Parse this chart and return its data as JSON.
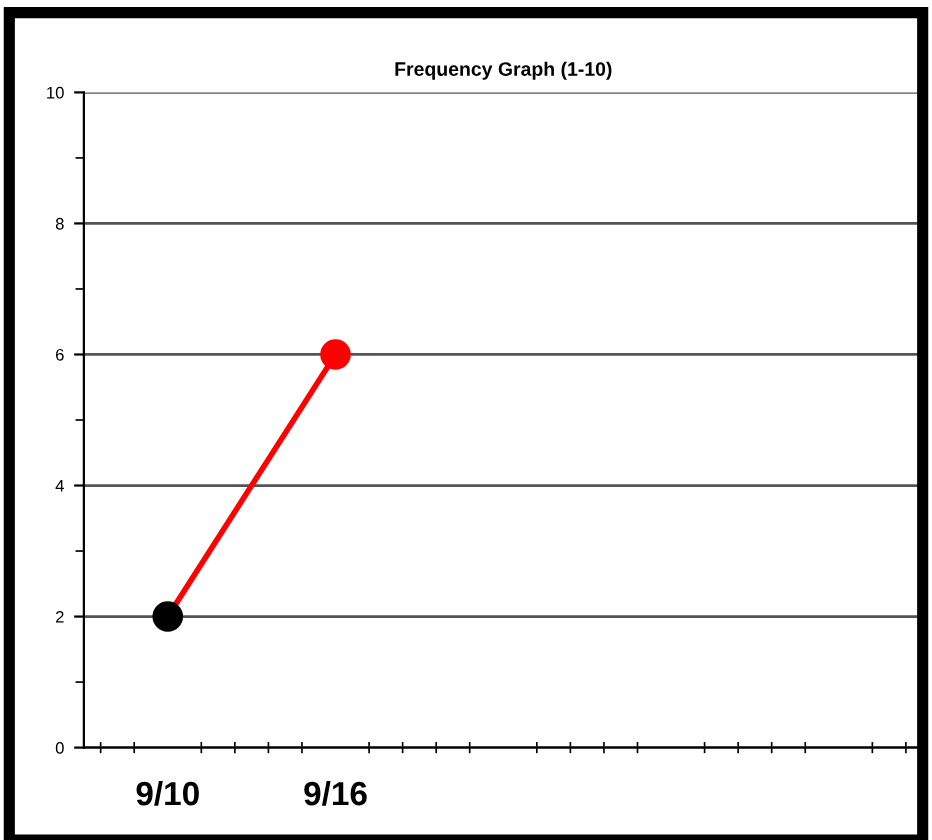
{
  "chart_data": {
    "type": "line",
    "title": "Frequency Graph (1-10)",
    "categories": [
      "9/10",
      "9/16",
      null,
      null,
      null
    ],
    "series": [
      {
        "color": "#ff0000",
        "colors": [
          "#000000",
          "#ff0000",
          null,
          null,
          null
        ],
        "values": [
          2,
          6,
          null,
          null,
          null
        ]
      }
    ],
    "ylim": [
      0,
      10
    ],
    "yticks": [
      0,
      2,
      4,
      6,
      8,
      10
    ],
    "grid": "y",
    "marker": "circle",
    "line_style": "solid",
    "legend": false
  }
}
